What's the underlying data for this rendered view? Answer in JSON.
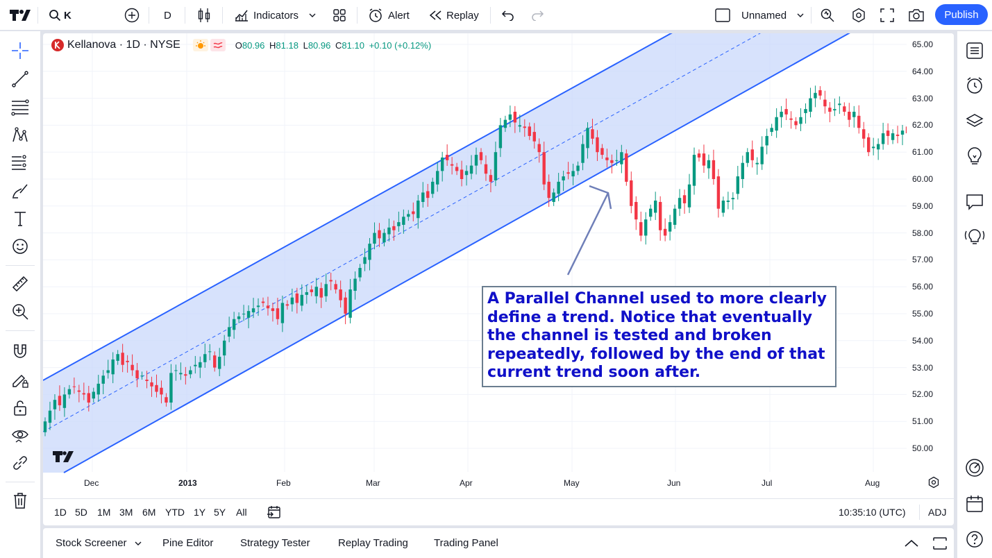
{
  "topbar": {
    "symbol": "K",
    "interval": "D",
    "indicators_label": "Indicators",
    "alert_label": "Alert",
    "replay_label": "Replay",
    "layout_name": "Unnamed",
    "publish_label": "Publish"
  },
  "legend": {
    "title": "Kellanova · 1D · NYSE",
    "open_key": "O",
    "open": "80.96",
    "high_key": "H",
    "high": "81.18",
    "low_key": "L",
    "low": "80.96",
    "close_key": "C",
    "close": "81.10",
    "change": "+0.10 (+0.12%)"
  },
  "price_axis": [
    "65.00",
    "64.00",
    "63.00",
    "62.00",
    "61.00",
    "60.00",
    "59.00",
    "58.00",
    "57.00",
    "56.00",
    "55.00",
    "54.00",
    "53.00",
    "52.00",
    "51.00",
    "50.00"
  ],
  "time_axis": [
    "Dec",
    "2013",
    "Feb",
    "Mar",
    "Apr",
    "May",
    "Jun",
    "Jul",
    "Aug"
  ],
  "annotation": "A Parallel Channel used to more clearly define a trend. Notice that eventually the channel is tested and broken repeatedly, followed by the end of that current trend soon after.",
  "range_buttons": [
    "1D",
    "5D",
    "1M",
    "3M",
    "6M",
    "YTD",
    "1Y",
    "5Y",
    "All"
  ],
  "clock": "10:35:10 (UTC)",
  "adj_label": "ADJ",
  "bottom_tabs": [
    "Stock Screener",
    "Pine Editor",
    "Strategy Tester",
    "Replay Trading",
    "Trading Panel"
  ],
  "colors": {
    "up": "#089981",
    "down": "#f23645",
    "channel": "#2962ff",
    "accent": "#2962ff"
  },
  "chart_data": {
    "type": "candlestick",
    "title": "Kellanova · 1D · NYSE",
    "ylim": [
      49.5,
      65.3
    ],
    "x_range": [
      "2012-11-23",
      "2013-08-13"
    ],
    "closes": [
      51.0,
      51.4,
      51.8,
      51.6,
      52.0,
      52.2,
      52.3,
      52.1,
      52.0,
      51.7,
      52.1,
      52.4,
      52.7,
      52.9,
      53.3,
      53.5,
      53.1,
      53.2,
      52.9,
      52.6,
      52.7,
      52.5,
      52.3,
      52.1,
      52.0,
      51.7,
      52.8,
      52.9,
      52.8,
      52.7,
      52.9,
      53.1,
      53.2,
      53.5,
      53.6,
      53.0,
      53.4,
      54.0,
      54.5,
      54.8,
      54.9,
      55.0,
      55.1,
      55.2,
      55.3,
      55.4,
      55.2,
      55.1,
      54.8,
      55.4,
      55.3,
      55.6,
      55.4,
      55.7,
      55.8,
      55.8,
      56.0,
      55.6,
      56.1,
      56.2,
      55.9,
      55.5,
      55.0,
      55.9,
      56.3,
      56.7,
      57.1,
      57.6,
      58.0,
      57.8,
      58.0,
      58.2,
      58.1,
      58.4,
      58.6,
      58.7,
      58.7,
      59.2,
      59.5,
      59.3,
      59.9,
      60.3,
      60.8,
      60.7,
      60.5,
      60.3,
      60.0,
      60.3,
      60.5,
      60.9,
      60.7,
      60.2,
      59.9,
      61.0,
      62.0,
      62.2,
      62.4,
      62.1,
      62.0,
      61.9,
      61.6,
      61.4,
      61.0,
      59.8,
      59.3,
      59.5,
      59.9,
      60.1,
      60.2,
      60.3,
      60.5,
      61.3,
      61.9,
      61.5,
      61.0,
      60.9,
      60.7,
      60.6,
      60.7,
      61.0,
      59.9,
      59.0,
      58.5,
      57.9,
      58.5,
      58.9,
      59.2,
      58.1,
      57.9,
      58.4,
      58.9,
      59.3,
      59.1,
      59.8,
      60.9,
      60.8,
      60.5,
      60.7,
      60.0,
      58.9,
      59.2,
      59.2,
      59.3,
      60.1,
      60.6,
      61.0,
      60.7,
      60.6,
      61.2,
      61.6,
      61.9,
      62.3,
      62.5,
      62.4,
      62.2,
      62.0,
      62.3,
      62.6,
      63.0,
      63.2,
      63.1,
      62.7,
      62.5,
      62.6,
      62.8,
      62.5,
      62.2,
      62.5,
      61.9,
      61.5,
      61.0,
      61.2,
      61.3,
      61.7,
      61.6,
      61.7,
      61.6,
      61.8,
      61.7,
      61.8
    ]
  }
}
